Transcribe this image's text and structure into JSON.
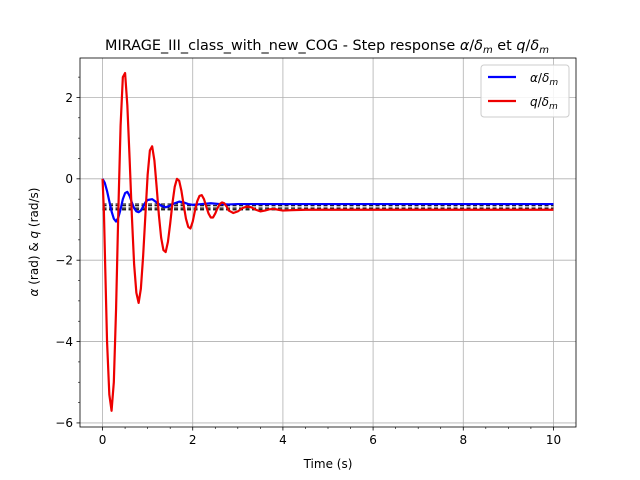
{
  "chart_data": {
    "type": "line",
    "title": "MIRAGE_III_class_with_new_COG - Step response α/δm et q/δm",
    "title_parts": {
      "prefix": "MIRAGE_III_class_with_new_COG - Step response ",
      "alpha": "α",
      "slash": "/",
      "delta": "δ",
      "sub": "m",
      "et": " et ",
      "q": "q"
    },
    "xlabel": "Time (s)",
    "ylabel_parts": {
      "alpha": "α",
      "mid": " (rad) & ",
      "q": "q",
      "end": " (rad/s)"
    },
    "xlim": [
      -0.5,
      10.5
    ],
    "ylim": [
      -6.1,
      2.97
    ],
    "xticks": [
      0,
      2,
      4,
      6,
      8,
      10
    ],
    "yticks": [
      -6,
      -4,
      -2,
      0,
      2
    ],
    "grid": true,
    "legend": "top-right",
    "series": [
      {
        "name": "α/δm",
        "label_main": "α",
        "label_slash": "/",
        "label_delta": "δ",
        "label_sub": "m",
        "color": "#0000ff",
        "steady": -0.62,
        "x": [
          0,
          0.05,
          0.1,
          0.15,
          0.2,
          0.25,
          0.3,
          0.35,
          0.4,
          0.45,
          0.5,
          0.55,
          0.6,
          0.65,
          0.7,
          0.75,
          0.8,
          0.85,
          0.9,
          0.95,
          1.0,
          1.1,
          1.2,
          1.3,
          1.4,
          1.5,
          1.6,
          1.7,
          1.8,
          1.9,
          2.0,
          2.2,
          2.4,
          2.6,
          2.8,
          3.0,
          3.3,
          3.6,
          4.0,
          5,
          6,
          7,
          8,
          9,
          10
        ],
        "y": [
          0,
          -0.1,
          -0.3,
          -0.55,
          -0.8,
          -0.98,
          -1.05,
          -0.95,
          -0.75,
          -0.5,
          -0.35,
          -0.32,
          -0.42,
          -0.58,
          -0.72,
          -0.8,
          -0.82,
          -0.78,
          -0.68,
          -0.58,
          -0.52,
          -0.5,
          -0.58,
          -0.66,
          -0.7,
          -0.66,
          -0.6,
          -0.56,
          -0.58,
          -0.62,
          -0.64,
          -0.62,
          -0.6,
          -0.62,
          -0.63,
          -0.62,
          -0.62,
          -0.62,
          -0.62,
          -0.62,
          -0.62,
          -0.62,
          -0.62,
          -0.62,
          -0.62
        ]
      },
      {
        "name": "q/δm",
        "label_main": "q",
        "label_slash": "/",
        "label_delta": "δ",
        "label_sub": "m",
        "color": "#ee0000",
        "steady": -0.76,
        "x": [
          0,
          0.03,
          0.06,
          0.1,
          0.15,
          0.2,
          0.25,
          0.3,
          0.35,
          0.4,
          0.45,
          0.5,
          0.55,
          0.6,
          0.65,
          0.7,
          0.75,
          0.8,
          0.85,
          0.9,
          0.95,
          1.0,
          1.05,
          1.1,
          1.15,
          1.2,
          1.25,
          1.3,
          1.35,
          1.4,
          1.45,
          1.5,
          1.55,
          1.6,
          1.65,
          1.7,
          1.75,
          1.8,
          1.85,
          1.9,
          1.95,
          2.0,
          2.05,
          2.1,
          2.15,
          2.2,
          2.25,
          2.3,
          2.35,
          2.4,
          2.45,
          2.5,
          2.55,
          2.6,
          2.65,
          2.7,
          2.75,
          2.8,
          2.9,
          3.0,
          3.1,
          3.2,
          3.3,
          3.4,
          3.5,
          3.6,
          3.7,
          3.8,
          3.9,
          4.0,
          4.2,
          4.5,
          5,
          6,
          7,
          8,
          9,
          10
        ],
        "y": [
          0,
          -0.8,
          -2.2,
          -4.0,
          -5.3,
          -5.7,
          -5.0,
          -3.2,
          -0.8,
          1.3,
          2.5,
          2.6,
          1.8,
          0.5,
          -0.9,
          -2.1,
          -2.8,
          -3.05,
          -2.7,
          -1.9,
          -0.9,
          0.1,
          0.7,
          0.8,
          0.45,
          -0.2,
          -0.9,
          -1.45,
          -1.75,
          -1.8,
          -1.55,
          -1.1,
          -0.6,
          -0.2,
          0.0,
          -0.05,
          -0.3,
          -0.65,
          -0.98,
          -1.18,
          -1.22,
          -1.05,
          -0.78,
          -0.55,
          -0.42,
          -0.4,
          -0.5,
          -0.68,
          -0.85,
          -0.95,
          -0.95,
          -0.85,
          -0.72,
          -0.62,
          -0.58,
          -0.6,
          -0.68,
          -0.78,
          -0.84,
          -0.8,
          -0.72,
          -0.68,
          -0.7,
          -0.76,
          -0.8,
          -0.78,
          -0.75,
          -0.74,
          -0.76,
          -0.78,
          -0.77,
          -0.76,
          -0.76,
          -0.76,
          -0.76,
          -0.76,
          -0.76,
          -0.76
        ]
      }
    ],
    "reference_lines": [
      -0.62,
      -0.66,
      -0.72,
      -0.76
    ],
    "reference_color": "#000000"
  }
}
